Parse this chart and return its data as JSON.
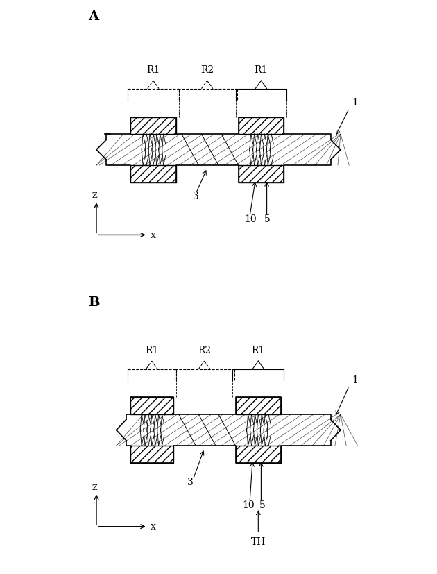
{
  "bg_color": "#ffffff",
  "line_color": "#000000",
  "hatch_color": "#555555",
  "panel_A_label": "A",
  "panel_B_label": "B",
  "label_1": "1",
  "label_3": "3",
  "label_5": "5",
  "label_10": "10",
  "label_TH": "TH",
  "label_R1": "R1",
  "label_R2": "R2",
  "label_Z": "Z",
  "label_X": "X"
}
